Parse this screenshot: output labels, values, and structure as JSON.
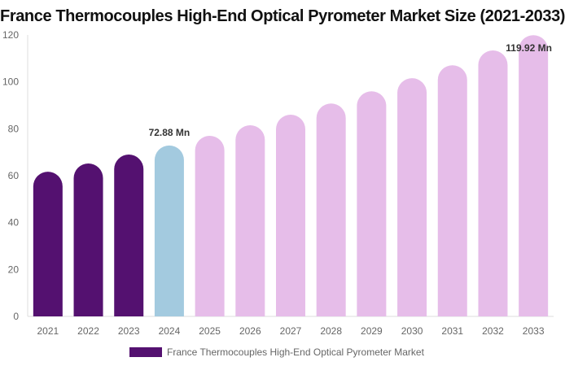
{
  "chart_data": {
    "type": "bar",
    "title": "France Thermocouples High-End Optical Pyrometer Market Size (2021-2033)",
    "categories": [
      "2021",
      "2022",
      "2023",
      "2024",
      "2025",
      "2026",
      "2027",
      "2028",
      "2029",
      "2030",
      "2031",
      "2032",
      "2033"
    ],
    "series": [
      {
        "name": "France Thermocouples High-End Optical Pyrometer Market",
        "values": [
          61.7,
          65.2,
          69.0,
          72.88,
          77.0,
          81.5,
          86.0,
          90.8,
          96.0,
          101.6,
          107.1,
          113.4,
          119.92
        ]
      }
    ],
    "bar_colors": [
      "#541170",
      "#541170",
      "#541170",
      "#a3cadf",
      "#e6bde9",
      "#e6bde9",
      "#e6bde9",
      "#e6bde9",
      "#e6bde9",
      "#e6bde9",
      "#e6bde9",
      "#e6bde9",
      "#e6bde9"
    ],
    "data_labels": [
      {
        "index": 3,
        "text": "72.88 Mn"
      },
      {
        "index": 12,
        "text": "119.92 Mn"
      }
    ],
    "yticks": [
      0,
      20,
      40,
      60,
      80,
      100,
      120
    ],
    "ylim": [
      0,
      120
    ],
    "grid": false,
    "legend_position": "bottom"
  }
}
